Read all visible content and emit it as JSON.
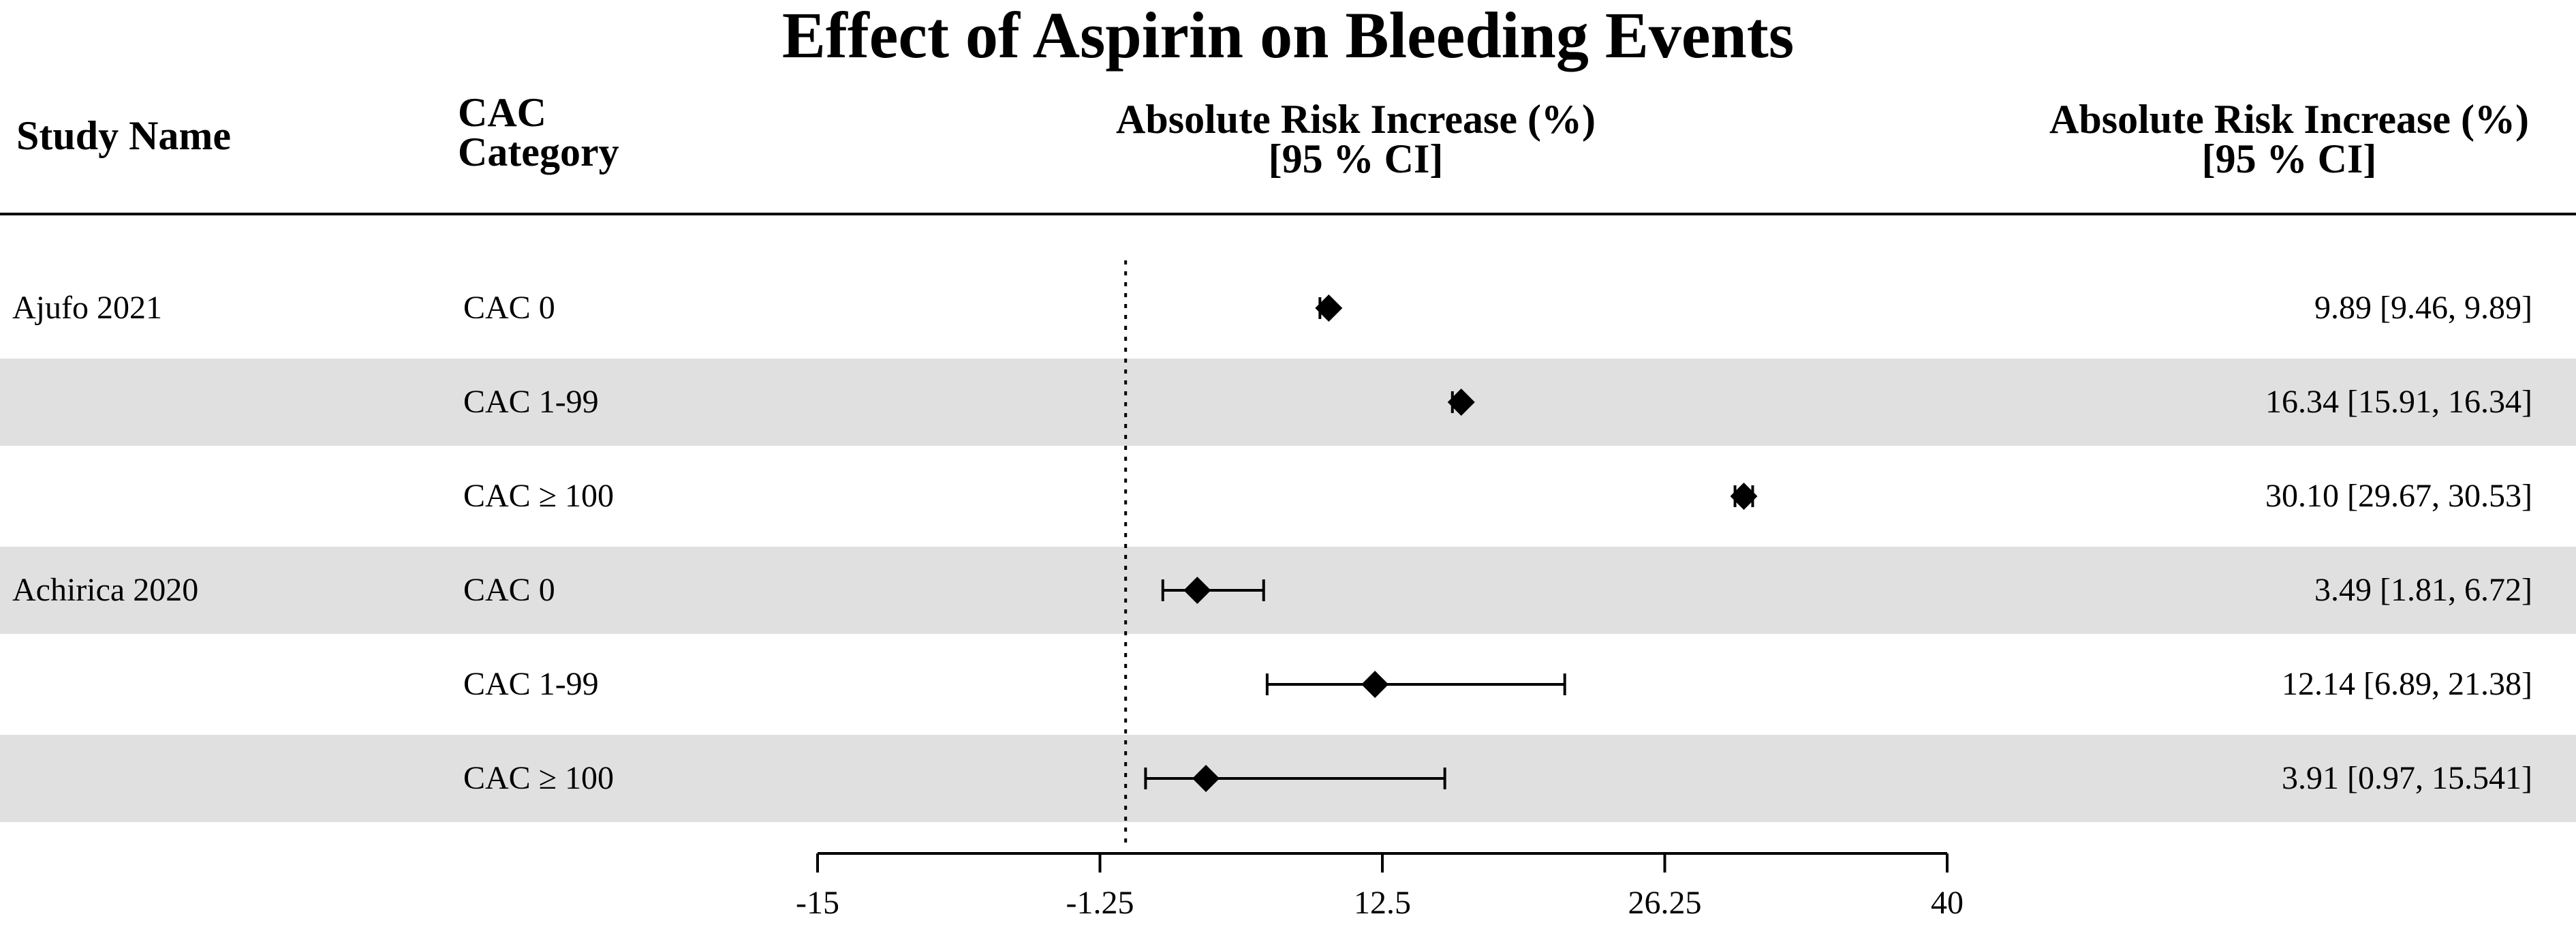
{
  "title": "Effect of Aspirin on Bleeding Events",
  "headers": {
    "study": "Study Name",
    "cac_line1": "CAC",
    "cac_line2": "Category",
    "plot_line1": "Absolute Risk Increase (%)",
    "plot_line2": "[95 % CI]",
    "ci_line1": "Absolute Risk Increase (%)",
    "ci_line2": "[95 % CI]"
  },
  "chart_data": {
    "type": "forest",
    "xlim": [
      -15,
      40
    ],
    "xticks": [
      -15,
      -1.25,
      12.5,
      26.25,
      40
    ],
    "xtick_labels": [
      "-15",
      "-1.25",
      "12.5",
      "26.25",
      "40"
    ],
    "reference_line": 0,
    "rows": [
      {
        "study": "Ajufo 2021",
        "category": "CAC 0",
        "estimate": 9.89,
        "lower": 9.46,
        "upper": 9.89,
        "ci_text": "9.89 [9.46, 9.89]",
        "shaded": false
      },
      {
        "study": "",
        "category": "CAC 1-99",
        "estimate": 16.34,
        "lower": 15.91,
        "upper": 16.34,
        "ci_text": "16.34 [15.91, 16.34]",
        "shaded": true
      },
      {
        "study": "",
        "category": "CAC ≥ 100",
        "estimate": 30.1,
        "lower": 29.67,
        "upper": 30.53,
        "ci_text": "30.10 [29.67, 30.53]",
        "shaded": false
      },
      {
        "study": "Achirica 2020",
        "category": "CAC 0",
        "estimate": 3.49,
        "lower": 1.81,
        "upper": 6.72,
        "ci_text": "3.49 [1.81, 6.72]",
        "shaded": true
      },
      {
        "study": "",
        "category": "CAC 1-99",
        "estimate": 12.14,
        "lower": 6.89,
        "upper": 21.38,
        "ci_text": "12.14 [6.89, 21.38]",
        "shaded": false
      },
      {
        "study": "",
        "category": "CAC ≥ 100",
        "estimate": 3.91,
        "lower": 0.97,
        "upper": 15.541,
        "ci_text": "3.91 [0.97, 15.541]",
        "shaded": true
      }
    ]
  }
}
